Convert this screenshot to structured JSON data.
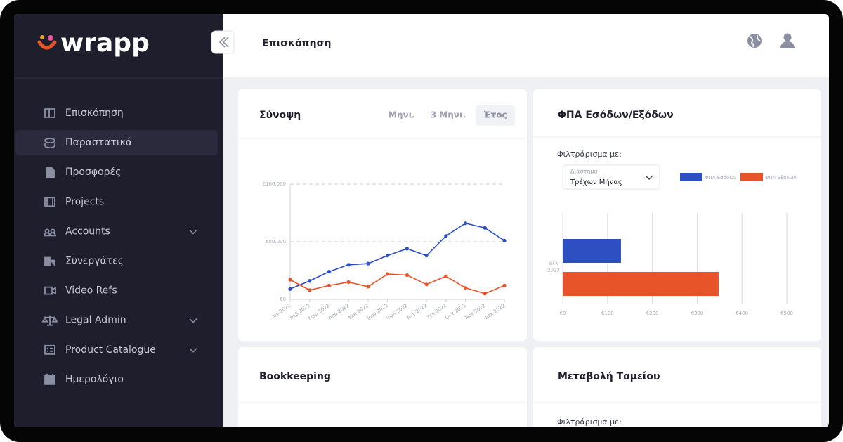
{
  "sidebar": {
    "logo": "wrapp",
    "menu": [
      {
        "label": "Επισκόπηση",
        "active": false,
        "has_submenu": false
      },
      {
        "label": "Παραστατικά",
        "active": true,
        "has_submenu": false
      },
      {
        "label": "Προσφορές",
        "active": false,
        "has_submenu": false
      },
      {
        "label": "Projects",
        "active": false,
        "has_submenu": false
      },
      {
        "label": "Accounts",
        "active": false,
        "has_submenu": true
      },
      {
        "label": "Συνεργάτες",
        "active": false,
        "has_submenu": false
      },
      {
        "label": "Video Refs",
        "active": false,
        "has_submenu": false
      },
      {
        "label": "Legal Admin",
        "active": false,
        "has_submenu": true
      },
      {
        "label": "Product Catalogue",
        "active": false,
        "has_submenu": true
      },
      {
        "label": "Ημερολόγιο",
        "active": false,
        "has_submenu": false
      }
    ]
  },
  "header": {
    "title": "Επισκόπηση"
  },
  "summary_tabs": {
    "tabs": [
      "Μηνι.",
      "3 Μηνι.",
      "Έτος"
    ],
    "active": "Έτος"
  },
  "vat_filter": {
    "label": "Φιλτράρισμα με:",
    "field_label": "Διάστημα",
    "field_value": "Τρέχων Μήνας"
  },
  "bookkeeping": {
    "title": "Bookkeeping"
  },
  "cash_change": {
    "title": "Μεταβολή Ταμείου",
    "filter_label": "Φιλτράρισμα με:"
  },
  "chart_data": [
    {
      "type": "line",
      "title": "Σύνοψη",
      "categories": [
        "Ιαν 2022",
        "Φεβ 2022",
        "Μαρ 2022",
        "Απρ 2022",
        "Μαϊ 2022",
        "Ιουν 2022",
        "Ιουλ 2022",
        "Αυγ 2022",
        "Σεπ 2022",
        "Οκτ 2022",
        "Νοε 2022",
        "Δεκ 2022"
      ],
      "series": [
        {
          "color": "#2d4fc2",
          "values": [
            9000,
            16000,
            24000,
            30000,
            31000,
            38000,
            44000,
            38000,
            55000,
            66000,
            62000,
            51000
          ]
        },
        {
          "color": "#e8542a",
          "values": [
            17000,
            8000,
            12000,
            15000,
            11000,
            22000,
            21000,
            13000,
            20000,
            10000,
            5000,
            12000
          ]
        }
      ],
      "ylim": [
        0,
        100000
      ],
      "yticks": [
        {
          "value": 0,
          "label": "€0"
        },
        {
          "value": 50000,
          "label": "€50.000"
        },
        {
          "value": 100000,
          "label": "€100.000"
        }
      ],
      "grid": true
    },
    {
      "type": "hbar",
      "title": "ΦΠΑ Εσόδων/Εξόδων",
      "categories": [
        "Δεκ 2022"
      ],
      "series": [
        {
          "name": "ΦΠΑ Εσόδων",
          "color": "#2d4fc2",
          "values": [
            130
          ]
        },
        {
          "name": "ΦΠΑ Εξόδων",
          "color": "#e8542a",
          "values": [
            348
          ]
        }
      ],
      "xlim": [
        0,
        500
      ],
      "xticks": [
        {
          "value": 0,
          "label": "€0"
        },
        {
          "value": 100,
          "label": "€100"
        },
        {
          "value": 200,
          "label": "€200"
        },
        {
          "value": 300,
          "label": "€300"
        },
        {
          "value": 400,
          "label": "€400"
        },
        {
          "value": 500,
          "label": "€500"
        }
      ],
      "grid": true,
      "legend": "top-right"
    }
  ]
}
